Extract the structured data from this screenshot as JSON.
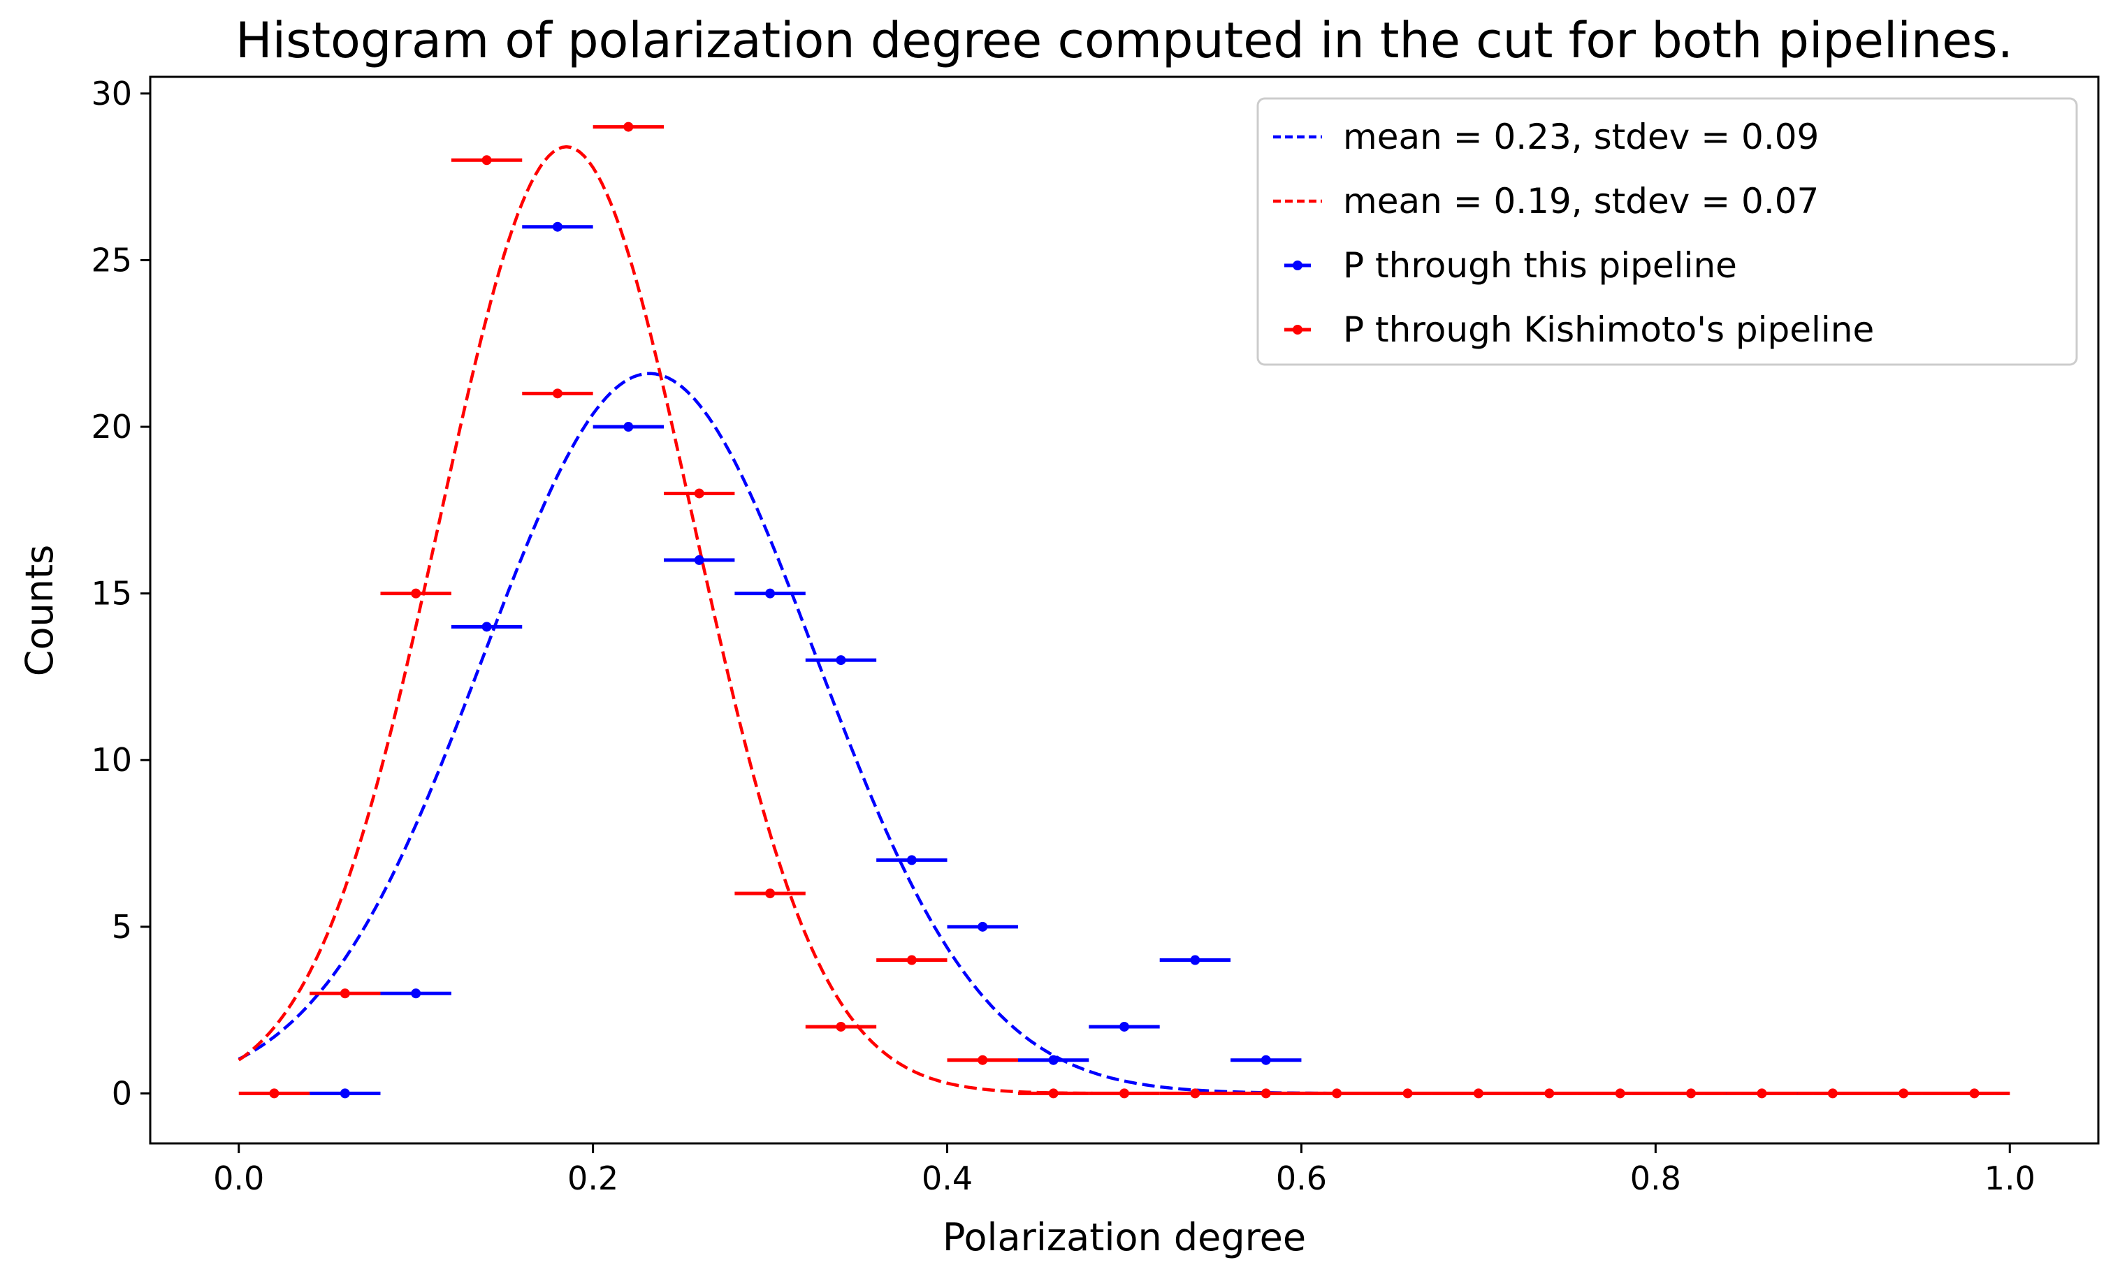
{
  "chart_data": {
    "type": "scatter",
    "title": "Histogram of polarization degree computed in the cut for both pipelines.",
    "xlabel": "Polarization degree",
    "ylabel": "Counts",
    "xlim": [
      -0.05,
      1.05
    ],
    "ylim": [
      -1.5,
      30.5
    ],
    "xticks": [
      0.0,
      0.2,
      0.4,
      0.6,
      0.8,
      1.0
    ],
    "xtick_labels": [
      "0.0",
      "0.2",
      "0.4",
      "0.6",
      "0.8",
      "1.0"
    ],
    "yticks": [
      0,
      5,
      10,
      15,
      20,
      25,
      30
    ],
    "ytick_labels": [
      "0",
      "5",
      "10",
      "15",
      "20",
      "25",
      "30"
    ],
    "grid": false,
    "legend_position": "top-right",
    "bin_halfwidth": 0.02,
    "fits": [
      {
        "name": "mean = 0.23, stdev = 0.09",
        "color": "#0000ff",
        "amplitude": 21.6,
        "mean": 0.232,
        "sigma": 0.094,
        "style": "dashed"
      },
      {
        "name": "mean = 0.19, stdev = 0.07",
        "color": "#ff0000",
        "amplitude": 28.4,
        "mean": 0.185,
        "sigma": 0.0715,
        "style": "dashed"
      }
    ],
    "series": [
      {
        "name": "P through this pipeline",
        "color": "#0000ff",
        "x": [
          0.06,
          0.1,
          0.14,
          0.18,
          0.22,
          0.26,
          0.3,
          0.34,
          0.38,
          0.42,
          0.46,
          0.5,
          0.54,
          0.58
        ],
        "y": [
          0,
          3,
          14,
          26,
          20,
          16,
          15,
          13,
          7,
          5,
          1,
          2,
          4,
          1
        ]
      },
      {
        "name": "P through Kishimoto's pipeline",
        "color": "#ff0000",
        "x": [
          0.02,
          0.06,
          0.1,
          0.14,
          0.18,
          0.22,
          0.26,
          0.3,
          0.34,
          0.38,
          0.42,
          0.46,
          0.5,
          0.54,
          0.58,
          0.62,
          0.66,
          0.7,
          0.74,
          0.78,
          0.82,
          0.86,
          0.9,
          0.94,
          0.98
        ],
        "y": [
          0,
          3,
          15,
          28,
          21,
          29,
          18,
          6,
          2,
          4,
          1,
          0,
          0,
          0,
          0,
          0,
          0,
          0,
          0,
          0,
          0,
          0,
          0,
          0,
          0
        ]
      }
    ]
  }
}
